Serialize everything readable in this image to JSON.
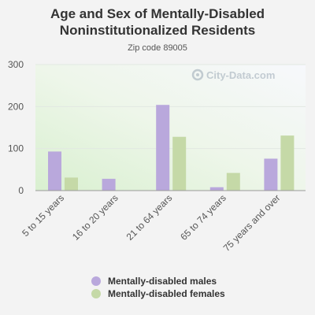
{
  "chart_data": {
    "type": "bar",
    "title_line1": "Age and Sex of Mentally-Disabled",
    "title_line2": "Noninstitutionalized Residents",
    "subtitle": "Zip code 89005",
    "categories": [
      "5 to 15 years",
      "16 to 20 years",
      "21 to 64 years",
      "65 to 74 years",
      "75 years and over"
    ],
    "series": [
      {
        "name": "Mentally-disabled males",
        "color": "#b9a8dc",
        "values": [
          93,
          28,
          204,
          8,
          76
        ]
      },
      {
        "name": "Mentally-disabled females",
        "color": "#c5d9a7",
        "values": [
          31,
          0,
          128,
          42,
          131
        ]
      }
    ],
    "ylim": [
      0,
      300
    ],
    "yticks": [
      0,
      100,
      200,
      300
    ],
    "grid": true,
    "legend_position": "bottom",
    "watermark": "City-Data.com"
  }
}
